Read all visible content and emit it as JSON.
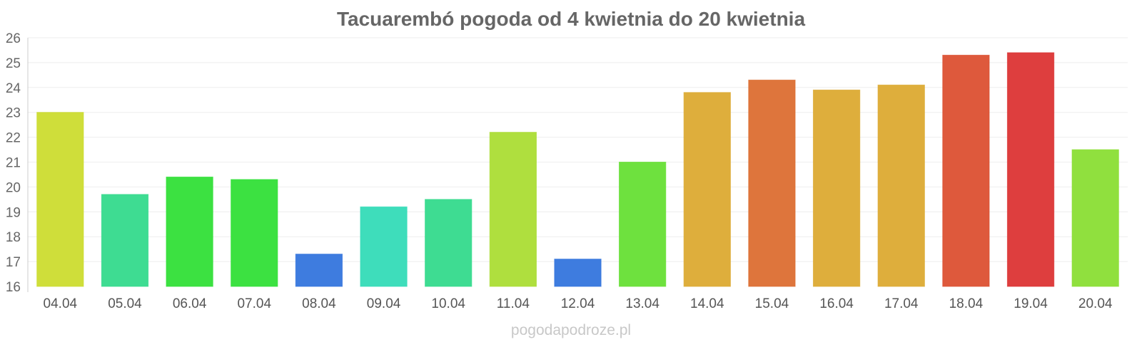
{
  "chart_data": {
    "type": "bar",
    "title": "Tacuarembó pogoda od 4 kwietnia do 20 kwietnia",
    "categories": [
      "04.04",
      "05.04",
      "06.04",
      "07.04",
      "08.04",
      "09.04",
      "10.04",
      "11.04",
      "12.04",
      "13.04",
      "14.04",
      "15.04",
      "16.04",
      "17.04",
      "18.04",
      "19.04",
      "20.04"
    ],
    "values": [
      23.0,
      19.7,
      20.4,
      20.3,
      17.3,
      19.2,
      19.5,
      22.2,
      17.1,
      21.0,
      23.8,
      24.3,
      23.9,
      24.1,
      25.3,
      25.4,
      21.5
    ],
    "colors": [
      "#ccdc2f",
      "#34da8c",
      "#31df37",
      "#31df37",
      "#3475dd",
      "#34dbb7",
      "#34da8c",
      "#abdd34",
      "#3475dd",
      "#66df34",
      "#dcaa32",
      "#dc6e32",
      "#dcaa32",
      "#dcaa32",
      "#dc5032",
      "#dc3434",
      "#8ade34"
    ],
    "ylim": [
      16,
      26
    ],
    "yticks": [
      16,
      17,
      18,
      19,
      20,
      21,
      22,
      23,
      24,
      25,
      26
    ],
    "xlabel": "",
    "ylabel": "",
    "grid": true
  },
  "credit": "pogodapodroze.pl"
}
